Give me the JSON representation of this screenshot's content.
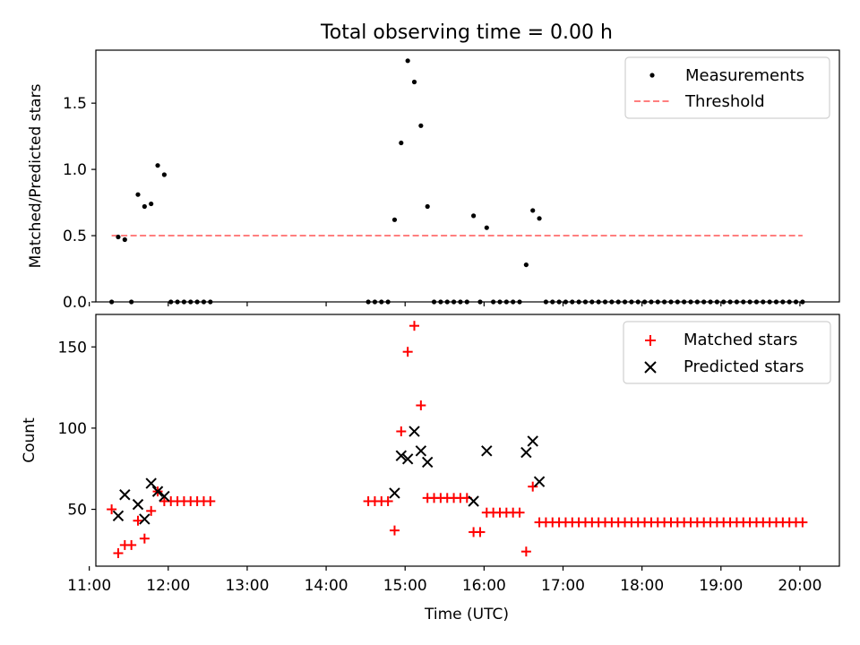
{
  "chart_data": [
    {
      "type": "scatter",
      "title": "Total observing time = 0.00 h",
      "ylabel": "Matched/Predicted stars",
      "xlabel": "",
      "xlim": [
        "11:05",
        "20:30"
      ],
      "ylim": [
        0,
        1.9
      ],
      "yticks": [
        0.0,
        0.5,
        1.0,
        1.5
      ],
      "ytick_labels": [
        "0.0",
        "0.5",
        "1.0",
        "1.5"
      ],
      "legend_position": "upper right",
      "series": [
        {
          "name": "Measurements",
          "kind": "scatter",
          "color": "#000000",
          "points": [
            [
              "11:17",
              0
            ],
            [
              "11:22",
              0.49
            ],
            [
              "11:27",
              0.47
            ],
            [
              "11:32",
              0
            ],
            [
              "11:37",
              0.81
            ],
            [
              "11:42",
              0.72
            ],
            [
              "11:47",
              0.74
            ],
            [
              "11:52",
              1.03
            ],
            [
              "11:57",
              0.96
            ],
            [
              "12:02",
              0
            ],
            [
              "12:07",
              0
            ],
            [
              "12:12",
              0
            ],
            [
              "12:17",
              0
            ],
            [
              "12:22",
              0
            ],
            [
              "12:27",
              0
            ],
            [
              "12:32",
              0
            ],
            [
              "14:32",
              0
            ],
            [
              "14:37",
              0
            ],
            [
              "14:42",
              0
            ],
            [
              "14:47",
              0
            ],
            [
              "14:52",
              0.62
            ],
            [
              "14:57",
              1.2
            ],
            [
              "15:02",
              1.82
            ],
            [
              "15:07",
              1.66
            ],
            [
              "15:12",
              1.33
            ],
            [
              "15:17",
              0.72
            ],
            [
              "15:22",
              0
            ],
            [
              "15:27",
              0
            ],
            [
              "15:32",
              0
            ],
            [
              "15:37",
              0
            ],
            [
              "15:42",
              0
            ],
            [
              "15:47",
              0
            ],
            [
              "15:52",
              0.65
            ],
            [
              "15:57",
              0
            ],
            [
              "16:02",
              0.56
            ],
            [
              "16:07",
              0
            ],
            [
              "16:12",
              0
            ],
            [
              "16:17",
              0
            ],
            [
              "16:22",
              0
            ],
            [
              "16:27",
              0
            ],
            [
              "16:32",
              0.28
            ],
            [
              "16:37",
              0.69
            ],
            [
              "16:42",
              0.63
            ],
            [
              "16:47",
              0
            ],
            [
              "16:52",
              0
            ],
            [
              "16:57",
              0
            ],
            [
              "17:02",
              0
            ],
            [
              "17:07",
              0
            ],
            [
              "17:12",
              0
            ],
            [
              "17:17",
              0
            ],
            [
              "17:22",
              0
            ],
            [
              "17:27",
              0
            ],
            [
              "17:32",
              0
            ],
            [
              "17:37",
              0
            ],
            [
              "17:42",
              0
            ],
            [
              "17:47",
              0
            ],
            [
              "17:52",
              0
            ],
            [
              "17:57",
              0
            ],
            [
              "18:02",
              0
            ],
            [
              "18:07",
              0
            ],
            [
              "18:12",
              0
            ],
            [
              "18:17",
              0
            ],
            [
              "18:22",
              0
            ],
            [
              "18:27",
              0
            ],
            [
              "18:32",
              0
            ],
            [
              "18:37",
              0
            ],
            [
              "18:42",
              0
            ],
            [
              "18:47",
              0
            ],
            [
              "18:52",
              0
            ],
            [
              "18:57",
              0
            ],
            [
              "19:02",
              0
            ],
            [
              "19:07",
              0
            ],
            [
              "19:12",
              0
            ],
            [
              "19:17",
              0
            ],
            [
              "19:22",
              0
            ],
            [
              "19:27",
              0
            ],
            [
              "19:32",
              0
            ],
            [
              "19:37",
              0
            ],
            [
              "19:42",
              0
            ],
            [
              "19:47",
              0
            ],
            [
              "19:52",
              0
            ],
            [
              "19:57",
              0
            ],
            [
              "20:02",
              0
            ]
          ]
        },
        {
          "name": "Threshold",
          "kind": "line",
          "color": "#ff7f7f",
          "dashed": true,
          "points": [
            [
              "11:17",
              0.5
            ],
            [
              "20:02",
              0.5
            ]
          ]
        }
      ]
    },
    {
      "type": "scatter",
      "title": "",
      "ylabel": "Count",
      "xlabel": "Time (UTC)",
      "xlim": [
        "11:05",
        "20:30"
      ],
      "ylim": [
        15,
        170
      ],
      "yticks": [
        50,
        100,
        150
      ],
      "ytick_labels": [
        "50",
        "100",
        "150"
      ],
      "xticks": [
        "11:00",
        "12:00",
        "13:00",
        "14:00",
        "15:00",
        "16:00",
        "17:00",
        "18:00",
        "19:00",
        "20:00"
      ],
      "legend_position": "upper right",
      "series": [
        {
          "name": "Matched stars",
          "kind": "plus",
          "color": "#ff0000",
          "points": [
            [
              "11:17",
              50
            ],
            [
              "11:22",
              23
            ],
            [
              "11:27",
              28
            ],
            [
              "11:32",
              28
            ],
            [
              "11:37",
              43
            ],
            [
              "11:42",
              32
            ],
            [
              "11:47",
              49
            ],
            [
              "11:52",
              61
            ],
            [
              "11:57",
              55
            ],
            [
              "12:02",
              55
            ],
            [
              "12:07",
              55
            ],
            [
              "12:12",
              55
            ],
            [
              "12:17",
              55
            ],
            [
              "12:22",
              55
            ],
            [
              "12:27",
              55
            ],
            [
              "12:32",
              55
            ],
            [
              "14:32",
              55
            ],
            [
              "14:37",
              55
            ],
            [
              "14:42",
              55
            ],
            [
              "14:47",
              55
            ],
            [
              "14:52",
              37
            ],
            [
              "14:57",
              98
            ],
            [
              "15:02",
              147
            ],
            [
              "15:07",
              163
            ],
            [
              "15:12",
              114
            ],
            [
              "15:17",
              57
            ],
            [
              "15:22",
              57
            ],
            [
              "15:27",
              57
            ],
            [
              "15:32",
              57
            ],
            [
              "15:37",
              57
            ],
            [
              "15:42",
              57
            ],
            [
              "15:47",
              57
            ],
            [
              "15:52",
              36
            ],
            [
              "15:57",
              36
            ],
            [
              "16:02",
              48
            ],
            [
              "16:07",
              48
            ],
            [
              "16:12",
              48
            ],
            [
              "16:17",
              48
            ],
            [
              "16:22",
              48
            ],
            [
              "16:27",
              48
            ],
            [
              "16:32",
              24
            ],
            [
              "16:37",
              64
            ],
            [
              "16:42",
              42
            ],
            [
              "16:47",
              42
            ],
            [
              "16:52",
              42
            ],
            [
              "16:57",
              42
            ],
            [
              "17:02",
              42
            ],
            [
              "17:07",
              42
            ],
            [
              "17:12",
              42
            ],
            [
              "17:17",
              42
            ],
            [
              "17:22",
              42
            ],
            [
              "17:27",
              42
            ],
            [
              "17:32",
              42
            ],
            [
              "17:37",
              42
            ],
            [
              "17:42",
              42
            ],
            [
              "17:47",
              42
            ],
            [
              "17:52",
              42
            ],
            [
              "17:57",
              42
            ],
            [
              "18:02",
              42
            ],
            [
              "18:07",
              42
            ],
            [
              "18:12",
              42
            ],
            [
              "18:17",
              42
            ],
            [
              "18:22",
              42
            ],
            [
              "18:27",
              42
            ],
            [
              "18:32",
              42
            ],
            [
              "18:37",
              42
            ],
            [
              "18:42",
              42
            ],
            [
              "18:47",
              42
            ],
            [
              "18:52",
              42
            ],
            [
              "18:57",
              42
            ],
            [
              "19:02",
              42
            ],
            [
              "19:07",
              42
            ],
            [
              "19:12",
              42
            ],
            [
              "19:17",
              42
            ],
            [
              "19:22",
              42
            ],
            [
              "19:27",
              42
            ],
            [
              "19:32",
              42
            ],
            [
              "19:37",
              42
            ],
            [
              "19:42",
              42
            ],
            [
              "19:47",
              42
            ],
            [
              "19:52",
              42
            ],
            [
              "19:57",
              42
            ],
            [
              "20:02",
              42
            ]
          ]
        },
        {
          "name": "Predicted stars",
          "kind": "x",
          "color": "#000000",
          "points": [
            [
              "11:22",
              46
            ],
            [
              "11:27",
              59
            ],
            [
              "11:37",
              53
            ],
            [
              "11:42",
              44
            ],
            [
              "11:47",
              66
            ],
            [
              "11:52",
              61
            ],
            [
              "11:57",
              58
            ],
            [
              "14:52",
              60
            ],
            [
              "14:57",
              83
            ],
            [
              "15:02",
              81
            ],
            [
              "15:07",
              98
            ],
            [
              "15:12",
              86
            ],
            [
              "15:17",
              79
            ],
            [
              "15:52",
              55
            ],
            [
              "16:02",
              86
            ],
            [
              "16:32",
              85
            ],
            [
              "16:37",
              92
            ],
            [
              "16:42",
              67
            ]
          ]
        }
      ]
    }
  ]
}
